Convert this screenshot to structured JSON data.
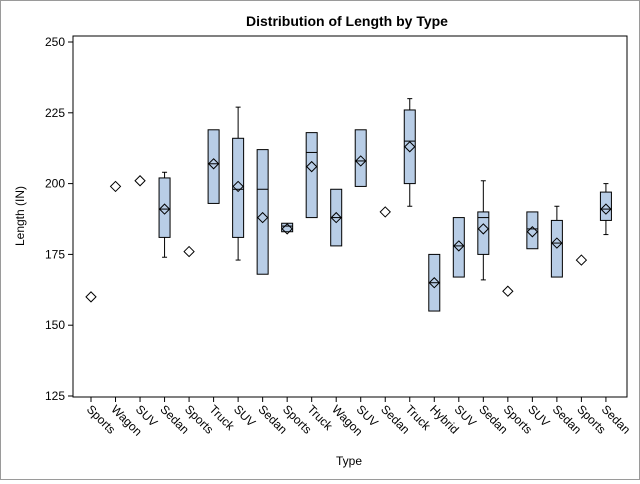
{
  "chart_data": {
    "type": "box",
    "title": "Distribution of Length by Type",
    "xlabel": "Type",
    "ylabel": "Length (IN)",
    "ylim": [
      125,
      250
    ],
    "yticks": [
      125,
      150,
      175,
      200,
      225,
      250
    ],
    "grid": false,
    "legend": "none",
    "box_fill": "#b8cde6",
    "stroke": "#000000",
    "categories": [
      "Sports",
      "Wagon",
      "SUV",
      "Sedan",
      "Sports",
      "Truck",
      "SUV",
      "Sedan",
      "Sports",
      "Truck",
      "Wagon",
      "SUV",
      "Sedan",
      "Truck",
      "Hybrid",
      "SUV",
      "Sedan",
      "Sports",
      "SUV",
      "Sedan",
      "Sports",
      "Sedan"
    ],
    "boxes": [
      {
        "min": 160,
        "q1": 160,
        "median": 160,
        "q3": 160,
        "max": 160,
        "mean": 160
      },
      {
        "min": 199,
        "q1": 199,
        "median": 199,
        "q3": 199,
        "max": 199,
        "mean": 199
      },
      {
        "min": 201,
        "q1": 201,
        "median": 201,
        "q3": 201,
        "max": 201,
        "mean": 201
      },
      {
        "min": 174,
        "q1": 181,
        "median": 191,
        "q3": 202,
        "max": 204,
        "mean": 191
      },
      {
        "min": 176,
        "q1": 176,
        "median": 176,
        "q3": 176,
        "max": 176,
        "mean": 176
      },
      {
        "min": 193,
        "q1": 193,
        "median": 207,
        "q3": 219,
        "max": 219,
        "mean": 207
      },
      {
        "min": 173,
        "q1": 181,
        "median": 198,
        "q3": 216,
        "max": 227,
        "mean": 199
      },
      {
        "min": 168,
        "q1": 168,
        "median": 198,
        "q3": 212,
        "max": 212,
        "mean": 188
      },
      {
        "min": 183,
        "q1": 183,
        "median": 185,
        "q3": 186,
        "max": 186,
        "mean": 184
      },
      {
        "min": 188,
        "q1": 188,
        "median": 211,
        "q3": 218,
        "max": 218,
        "mean": 206
      },
      {
        "min": 178,
        "q1": 178,
        "median": 188,
        "q3": 198,
        "max": 198,
        "mean": 188
      },
      {
        "min": 199,
        "q1": 199,
        "median": 208,
        "q3": 219,
        "max": 219,
        "mean": 208
      },
      {
        "min": 190,
        "q1": 190,
        "median": 190,
        "q3": 190,
        "max": 190,
        "mean": 190
      },
      {
        "min": 192,
        "q1": 200,
        "median": 215,
        "q3": 226,
        "max": 230,
        "mean": 213
      },
      {
        "min": 155,
        "q1": 155,
        "median": 165,
        "q3": 175,
        "max": 175,
        "mean": 165
      },
      {
        "min": 167,
        "q1": 167,
        "median": 178,
        "q3": 188,
        "max": 188,
        "mean": 178
      },
      {
        "min": 166,
        "q1": 175,
        "median": 188,
        "q3": 190,
        "max": 201,
        "mean": 184
      },
      {
        "min": 162,
        "q1": 162,
        "median": 162,
        "q3": 162,
        "max": 162,
        "mean": 162
      },
      {
        "min": 177,
        "q1": 177,
        "median": 184,
        "q3": 190,
        "max": 190,
        "mean": 183
      },
      {
        "min": 167,
        "q1": 167,
        "median": 179,
        "q3": 187,
        "max": 192,
        "mean": 179
      },
      {
        "min": 173,
        "q1": 173,
        "median": 173,
        "q3": 173,
        "max": 173,
        "mean": 173
      },
      {
        "min": 182,
        "q1": 187,
        "median": 191,
        "q3": 197,
        "max": 200,
        "mean": 191
      }
    ]
  }
}
